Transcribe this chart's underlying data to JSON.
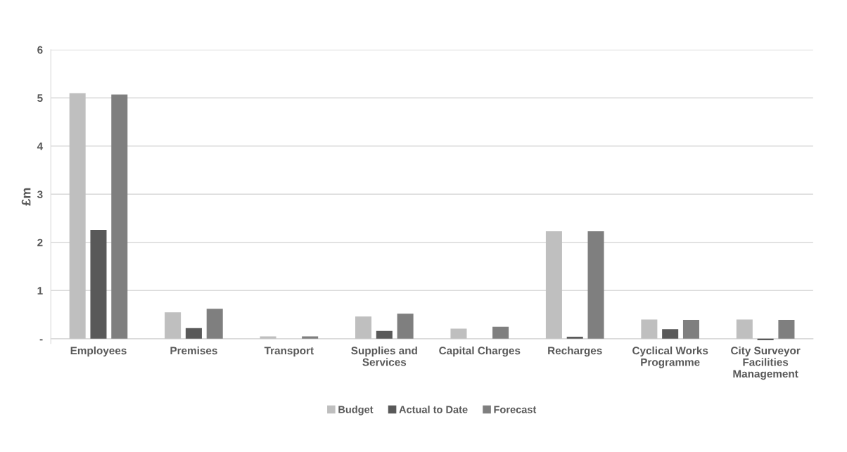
{
  "chart_data": {
    "type": "bar",
    "ylabel": "£m",
    "categories": [
      "Employees",
      "Premises",
      "Transport",
      "Supplies and\nServices",
      "Capital Charges",
      "Recharges",
      "Cyclical Works\nProgramme",
      "City Surveyor\nFacilities\nManagement"
    ],
    "series": [
      {
        "name": "Budget",
        "color": "#bfbfbf",
        "values": [
          5.1,
          0.55,
          0.05,
          0.46,
          0.21,
          2.23,
          0.4,
          0.4
        ]
      },
      {
        "name": "Actual to Date",
        "color": "#595959",
        "values": [
          2.26,
          0.22,
          0,
          0.16,
          0,
          0.04,
          0.2,
          -0.03
        ]
      },
      {
        "name": "Forecast",
        "color": "#7f7f7f",
        "values": [
          5.07,
          0.62,
          0.05,
          0.52,
          0.25,
          2.23,
          0.39,
          0.39
        ]
      }
    ],
    "ylim": [
      -0.1,
      6
    ],
    "yticks": [
      {
        "value": 0,
        "label": "-"
      },
      1,
      2,
      3,
      4,
      5,
      6
    ],
    "grid": "y",
    "legend": "bottom"
  }
}
